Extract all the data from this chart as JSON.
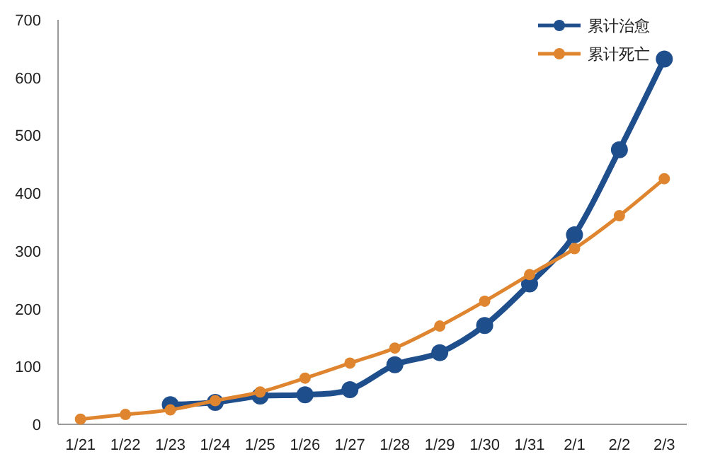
{
  "chart_data": {
    "type": "line",
    "categories": [
      "1/21",
      "1/22",
      "1/23",
      "1/24",
      "1/25",
      "1/26",
      "1/27",
      "1/28",
      "1/29",
      "1/30",
      "1/31",
      "2/1",
      "2/2",
      "2/3"
    ],
    "series": [
      {
        "name": "累计治愈",
        "color": "#1f4e8c",
        "values": [
          null,
          null,
          34,
          38,
          49,
          51,
          60,
          103,
          124,
          171,
          243,
          328,
          475,
          632
        ]
      },
      {
        "name": "累计死亡",
        "color": "#e0852f",
        "values": [
          9,
          17,
          25,
          41,
          56,
          80,
          106,
          132,
          170,
          213,
          259,
          304,
          361,
          425
        ]
      }
    ],
    "ylim": [
      0,
      700
    ],
    "yticks": [
      0,
      100,
      200,
      300,
      400,
      500,
      600,
      700
    ],
    "legend": "top right",
    "marker": "circle",
    "grid": false
  }
}
